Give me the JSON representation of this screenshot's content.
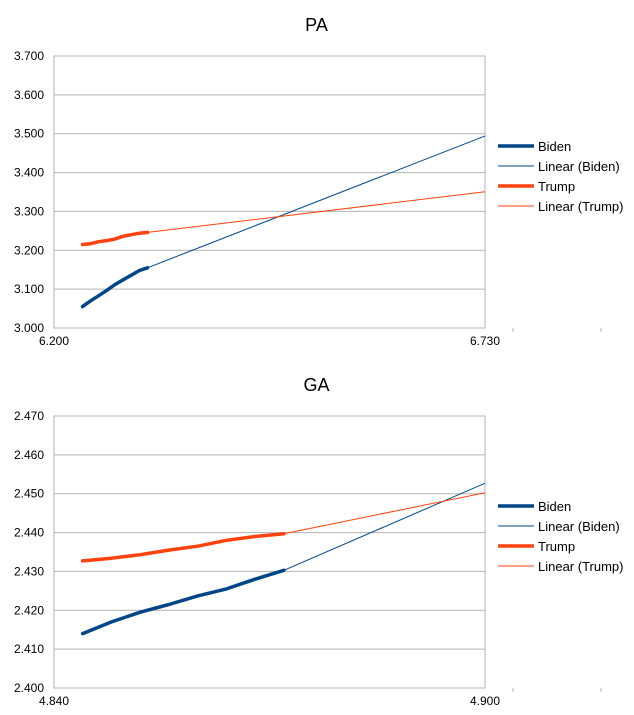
{
  "colors": {
    "biden": "#004586",
    "trump": "#ff420e",
    "grid": "#b3b3b3",
    "axis": "#b3b3b3"
  },
  "chart_data": [
    {
      "type": "line",
      "title": "PA",
      "xlabel": "",
      "ylabel": "",
      "xlim": [
        6.2,
        6.73
      ],
      "ylim": [
        3.0,
        3.7
      ],
      "x_ticks": [
        "6.200",
        "6.730"
      ],
      "y_ticks": [
        "3.000",
        "3.100",
        "3.200",
        "3.300",
        "3.400",
        "3.500",
        "3.600",
        "3.700"
      ],
      "grid": "major",
      "legend": {
        "position": "right",
        "entries": [
          "Biden",
          "Linear (Biden)",
          "Trump",
          "Linear (Trump)"
        ]
      },
      "series": [
        {
          "name": "Biden",
          "color": "#004586",
          "points": [
            [
              6.235,
              3.055
            ],
            [
              6.245,
              3.07
            ],
            [
              6.255,
              3.083
            ],
            [
              6.265,
              3.097
            ],
            [
              6.275,
              3.112
            ],
            [
              6.285,
              3.124
            ],
            [
              6.295,
              3.136
            ],
            [
              6.305,
              3.148
            ],
            [
              6.315,
              3.155
            ]
          ]
        },
        {
          "name": "Linear (Biden)",
          "color": "#004586",
          "trend": true,
          "points": [
            [
              6.315,
              3.155
            ],
            [
              6.78,
              3.535
            ]
          ]
        },
        {
          "name": "Trump",
          "color": "#ff420e",
          "points": [
            [
              6.235,
              3.215
            ],
            [
              6.245,
              3.217
            ],
            [
              6.255,
              3.222
            ],
            [
              6.265,
              3.225
            ],
            [
              6.275,
              3.229
            ],
            [
              6.285,
              3.236
            ],
            [
              6.295,
              3.24
            ],
            [
              6.305,
              3.244
            ],
            [
              6.315,
              3.246
            ]
          ]
        },
        {
          "name": "Linear (Trump)",
          "color": "#ff420e",
          "trend": true,
          "points": [
            [
              6.315,
              3.246
            ],
            [
              6.78,
              3.363
            ]
          ]
        }
      ]
    },
    {
      "type": "line",
      "title": "GA",
      "xlabel": "",
      "ylabel": "",
      "xlim": [
        4.84,
        4.9
      ],
      "ylim": [
        2.4,
        2.47
      ],
      "x_ticks": [
        "4.840",
        "4.900"
      ],
      "y_ticks": [
        "2.400",
        "2.410",
        "2.420",
        "2.430",
        "2.440",
        "2.450",
        "2.460",
        "2.470"
      ],
      "grid": "major",
      "legend": {
        "position": "right",
        "entries": [
          "Biden",
          "Linear (Biden)",
          "Trump",
          "Linear (Trump)"
        ]
      },
      "series": [
        {
          "name": "Biden",
          "color": "#004586",
          "points": [
            [
              4.844,
              2.414
            ],
            [
              4.848,
              2.417
            ],
            [
              4.852,
              2.4195
            ],
            [
              4.856,
              2.4215
            ],
            [
              4.86,
              2.4237
            ],
            [
              4.864,
              2.4255
            ],
            [
              4.868,
              2.428
            ],
            [
              4.872,
              2.4303
            ]
          ]
        },
        {
          "name": "Linear (Biden)",
          "color": "#004586",
          "trend": true,
          "points": [
            [
              4.872,
              2.4303
            ],
            [
              4.906,
              2.4575
            ]
          ]
        },
        {
          "name": "Trump",
          "color": "#ff420e",
          "points": [
            [
              4.844,
              2.4327
            ],
            [
              4.848,
              2.4334
            ],
            [
              4.852,
              2.4343
            ],
            [
              4.856,
              2.4355
            ],
            [
              4.86,
              2.4365
            ],
            [
              4.864,
              2.438
            ],
            [
              4.868,
              2.439
            ],
            [
              4.872,
              2.4397
            ]
          ]
        },
        {
          "name": "Linear (Trump)",
          "color": "#ff420e",
          "trend": true,
          "points": [
            [
              4.872,
              2.4397
            ],
            [
              4.906,
              2.4525
            ]
          ]
        }
      ]
    }
  ]
}
